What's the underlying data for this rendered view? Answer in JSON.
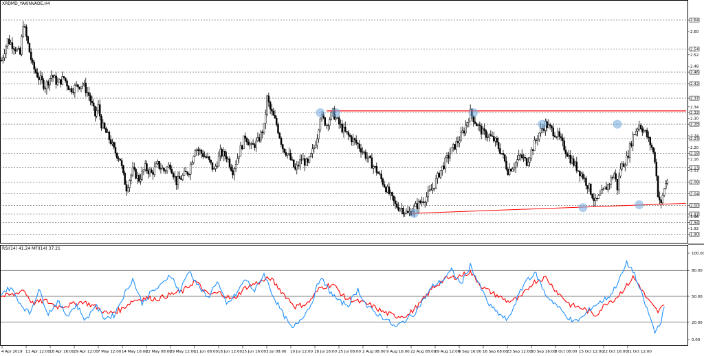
{
  "chart_data": [
    {
      "type": "candlestick",
      "symbol": "XRDMD_YAKINVADE,H4",
      "ylim": [
        1.88,
        2.69
      ],
      "y_scale_ticks": [
        "2.64",
        "2.60",
        "2.54",
        "2.52",
        "2.48",
        "2.46",
        "2.42",
        "2.37",
        "2.34",
        "2.32",
        "2.30",
        "2.28",
        "2.24",
        "2.23",
        "2.20",
        "2.18",
        "2.16",
        "2.13",
        "2.12",
        "2.08",
        "2.04",
        "2.00",
        "1.97",
        "1.96",
        "1.94",
        "1.92",
        "1.90"
      ],
      "highlighted_levels": [
        "2.64",
        "2.54",
        "2.46",
        "2.42",
        "2.37",
        "2.32",
        "2.28",
        "2.23",
        "2.18",
        "2.13",
        "2.08",
        "2.04",
        "2.00",
        "1.97",
        "1.94",
        "1.90"
      ],
      "x_tick_labels": [
        "4 Apr 2019",
        "11 Apr 12:00",
        "18 Apr 16:00",
        "29 Apr 12:00",
        "7 May 12:00",
        "14 May 16:00",
        "22 May 08:00",
        "29 May 12:00",
        "11 Jun 08:00",
        "18 Jun 12:00",
        "25 Jun 16:00",
        "3 Jul 08:00",
        "10 Jul 12:00",
        "18 Jul 16:00",
        "25 Jul 08:00",
        "2 Aug 08:00",
        "9 Aug 16:00",
        "22 Aug 08:00",
        "29 Aug 12:00",
        "6 Sep 16:00",
        "16 Sep 08:00",
        "23 Sep 12:00",
        "30 Sep 16:00",
        "8 Oct 08:00",
        "15 Oct 12:00",
        "22 Oct 16:00",
        "31 Oct 12:00"
      ],
      "close_path": [
        [
          0,
          2.5
        ],
        [
          2,
          2.57
        ],
        [
          4,
          2.55
        ],
        [
          6,
          2.52
        ],
        [
          7,
          2.63
        ],
        [
          8,
          2.58
        ],
        [
          10,
          2.48
        ],
        [
          12,
          2.44
        ],
        [
          14,
          2.41
        ],
        [
          16,
          2.45
        ],
        [
          18,
          2.42
        ],
        [
          20,
          2.44
        ],
        [
          22,
          2.4
        ],
        [
          24,
          2.41
        ],
        [
          26,
          2.42
        ],
        [
          28,
          2.38
        ],
        [
          30,
          2.31
        ],
        [
          31,
          2.34
        ],
        [
          32,
          2.28
        ],
        [
          33,
          2.26
        ],
        [
          35,
          2.22
        ],
        [
          36,
          2.19
        ],
        [
          38,
          2.16
        ],
        [
          39,
          2.1
        ],
        [
          40,
          2.06
        ],
        [
          42,
          2.12
        ],
        [
          44,
          2.09
        ],
        [
          46,
          2.13
        ],
        [
          48,
          2.11
        ],
        [
          50,
          2.14
        ],
        [
          52,
          2.12
        ],
        [
          54,
          2.14
        ],
        [
          56,
          2.08
        ],
        [
          58,
          2.1
        ],
        [
          60,
          2.12
        ],
        [
          62,
          2.2
        ],
        [
          64,
          2.18
        ],
        [
          66,
          2.16
        ],
        [
          68,
          2.12
        ],
        [
          70,
          2.18
        ],
        [
          72,
          2.17
        ],
        [
          74,
          2.12
        ],
        [
          76,
          2.18
        ],
        [
          78,
          2.24
        ],
        [
          80,
          2.2
        ],
        [
          82,
          2.22
        ],
        [
          84,
          2.27
        ],
        [
          85,
          2.37
        ],
        [
          86,
          2.33
        ],
        [
          88,
          2.28
        ],
        [
          90,
          2.2
        ],
        [
          92,
          2.17
        ],
        [
          94,
          2.12
        ],
        [
          96,
          2.16
        ],
        [
          98,
          2.14
        ],
        [
          100,
          2.2
        ],
        [
          101,
          2.24
        ],
        [
          102,
          2.31
        ],
        [
          104,
          2.28
        ],
        [
          106,
          2.32
        ],
        [
          108,
          2.28
        ],
        [
          110,
          2.25
        ],
        [
          112,
          2.23
        ],
        [
          114,
          2.21
        ],
        [
          116,
          2.18
        ],
        [
          118,
          2.15
        ],
        [
          120,
          2.12
        ],
        [
          122,
          2.08
        ],
        [
          124,
          2.04
        ],
        [
          126,
          2.0
        ],
        [
          128,
          1.99
        ],
        [
          130,
          1.97
        ],
        [
          132,
          1.99
        ],
        [
          134,
          2.01
        ],
        [
          136,
          2.03
        ],
        [
          138,
          2.06
        ],
        [
          140,
          2.11
        ],
        [
          142,
          2.15
        ],
        [
          144,
          2.19
        ],
        [
          146,
          2.22
        ],
        [
          148,
          2.26
        ],
        [
          150,
          2.32
        ],
        [
          152,
          2.28
        ],
        [
          154,
          2.25
        ],
        [
          156,
          2.24
        ],
        [
          158,
          2.22
        ],
        [
          160,
          2.18
        ],
        [
          162,
          2.12
        ],
        [
          164,
          2.14
        ],
        [
          166,
          2.17
        ],
        [
          168,
          2.15
        ],
        [
          170,
          2.2
        ],
        [
          172,
          2.25
        ],
        [
          174,
          2.28
        ],
        [
          176,
          2.26
        ],
        [
          178,
          2.24
        ],
        [
          180,
          2.2
        ],
        [
          182,
          2.16
        ],
        [
          184,
          2.13
        ],
        [
          186,
          2.1
        ],
        [
          188,
          2.06
        ],
        [
          190,
          2.01
        ],
        [
          192,
          2.04
        ],
        [
          194,
          2.07
        ],
        [
          196,
          2.11
        ],
        [
          197,
          2.06
        ],
        [
          198,
          2.13
        ],
        [
          200,
          2.16
        ],
        [
          202,
          2.24
        ],
        [
          204,
          2.28
        ],
        [
          206,
          2.25
        ],
        [
          208,
          2.2
        ],
        [
          209,
          2.16
        ],
        [
          210,
          2.04
        ],
        [
          211,
          2.0
        ],
        [
          212,
          2.06
        ],
        [
          213,
          2.09
        ]
      ],
      "series": [
        {
          "name": "RSI(14)",
          "color": "#ff0000",
          "value": "41.24"
        },
        {
          "name": "MFI(14)",
          "color": "#1e90ff",
          "value": "37.21"
        }
      ],
      "indicator_title": "RSI(14) 41.24 MFI(14) 37.21",
      "resistance_line": {
        "from": [
          104,
          2.326
        ],
        "to": [
          219,
          2.326
        ],
        "color": "#ff0000"
      },
      "support_line": {
        "from": [
          131,
          1.972
        ],
        "to": [
          219,
          2.007
        ],
        "color": "#ff0000"
      },
      "pivot_markers": [
        [
          102,
          2.32
        ],
        [
          107,
          2.32
        ],
        [
          151,
          2.32
        ],
        [
          173,
          2.28
        ],
        [
          197,
          2.28
        ],
        [
          132,
          1.972
        ],
        [
          186,
          1.992
        ],
        [
          204,
          2.002
        ]
      ]
    },
    {
      "type": "line",
      "ylim": [
        0,
        100
      ],
      "y_tick_labels": [
        "100.00",
        "80.00",
        "50.00",
        "20.00",
        "0.00"
      ],
      "levels": [
        80,
        50,
        20
      ],
      "series": [
        {
          "name": "RSI(14)",
          "color": "#ff0000",
          "values": [
            [
              0,
              50
            ],
            [
              4,
              52
            ],
            [
              7,
              58
            ],
            [
              10,
              42
            ],
            [
              14,
              45
            ],
            [
              18,
              38
            ],
            [
              22,
              40
            ],
            [
              26,
              44
            ],
            [
              30,
              38
            ],
            [
              34,
              30
            ],
            [
              38,
              34
            ],
            [
              42,
              45
            ],
            [
              46,
              48
            ],
            [
              50,
              47
            ],
            [
              54,
              52
            ],
            [
              58,
              56
            ],
            [
              62,
              68
            ],
            [
              66,
              52
            ],
            [
              70,
              54
            ],
            [
              74,
              46
            ],
            [
              78,
              60
            ],
            [
              82,
              66
            ],
            [
              86,
              71
            ],
            [
              90,
              54
            ],
            [
              94,
              38
            ],
            [
              98,
              42
            ],
            [
              102,
              60
            ],
            [
              106,
              64
            ],
            [
              110,
              48
            ],
            [
              114,
              44
            ],
            [
              118,
              40
            ],
            [
              122,
              32
            ],
            [
              126,
              27
            ],
            [
              130,
              28
            ],
            [
              134,
              42
            ],
            [
              138,
              60
            ],
            [
              142,
              70
            ],
            [
              146,
              73
            ],
            [
              150,
              78
            ],
            [
              154,
              60
            ],
            [
              158,
              52
            ],
            [
              162,
              44
            ],
            [
              166,
              48
            ],
            [
              170,
              66
            ],
            [
              174,
              72
            ],
            [
              178,
              54
            ],
            [
              182,
              40
            ],
            [
              186,
              36
            ],
            [
              190,
              28
            ],
            [
              194,
              44
            ],
            [
              196,
              46
            ],
            [
              198,
              54
            ],
            [
              200,
              62
            ],
            [
              202,
              72
            ],
            [
              204,
              63
            ],
            [
              206,
              50
            ],
            [
              208,
              40
            ],
            [
              210,
              32
            ],
            [
              212,
              40
            ]
          ]
        },
        {
          "name": "MFI(14)",
          "color": "#1e90ff",
          "values": [
            [
              0,
              54
            ],
            [
              3,
              60
            ],
            [
              6,
              42
            ],
            [
              9,
              30
            ],
            [
              12,
              58
            ],
            [
              15,
              30
            ],
            [
              18,
              44
            ],
            [
              21,
              28
            ],
            [
              24,
              40
            ],
            [
              27,
              22
            ],
            [
              30,
              40
            ],
            [
              33,
              25
            ],
            [
              36,
              28
            ],
            [
              39,
              50
            ],
            [
              42,
              70
            ],
            [
              45,
              42
            ],
            [
              48,
              55
            ],
            [
              51,
              62
            ],
            [
              54,
              76
            ],
            [
              57,
              55
            ],
            [
              60,
              80
            ],
            [
              63,
              62
            ],
            [
              66,
              48
            ],
            [
              69,
              68
            ],
            [
              72,
              40
            ],
            [
              75,
              52
            ],
            [
              78,
              70
            ],
            [
              81,
              56
            ],
            [
              84,
              76
            ],
            [
              87,
              50
            ],
            [
              90,
              30
            ],
            [
              93,
              12
            ],
            [
              96,
              25
            ],
            [
              99,
              40
            ],
            [
              102,
              72
            ],
            [
              105,
              56
            ],
            [
              108,
              44
            ],
            [
              111,
              40
            ],
            [
              114,
              58
            ],
            [
              117,
              38
            ],
            [
              120,
              30
            ],
            [
              123,
              24
            ],
            [
              126,
              14
            ],
            [
              129,
              22
            ],
            [
              132,
              30
            ],
            [
              135,
              46
            ],
            [
              138,
              62
            ],
            [
              141,
              68
            ],
            [
              144,
              80
            ],
            [
              147,
              64
            ],
            [
              150,
              86
            ],
            [
              153,
              62
            ],
            [
              156,
              40
            ],
            [
              159,
              30
            ],
            [
              162,
              22
            ],
            [
              165,
              48
            ],
            [
              168,
              70
            ],
            [
              171,
              76
            ],
            [
              174,
              52
            ],
            [
              177,
              42
            ],
            [
              180,
              30
            ],
            [
              183,
              20
            ],
            [
              186,
              26
            ],
            [
              189,
              38
            ],
            [
              192,
              44
            ],
            [
              195,
              52
            ],
            [
              198,
              72
            ],
            [
              200,
              88
            ],
            [
              202,
              80
            ],
            [
              204,
              60
            ],
            [
              206,
              40
            ],
            [
              208,
              20
            ],
            [
              209,
              8
            ],
            [
              211,
              22
            ],
            [
              212,
              38
            ]
          ]
        }
      ]
    }
  ]
}
